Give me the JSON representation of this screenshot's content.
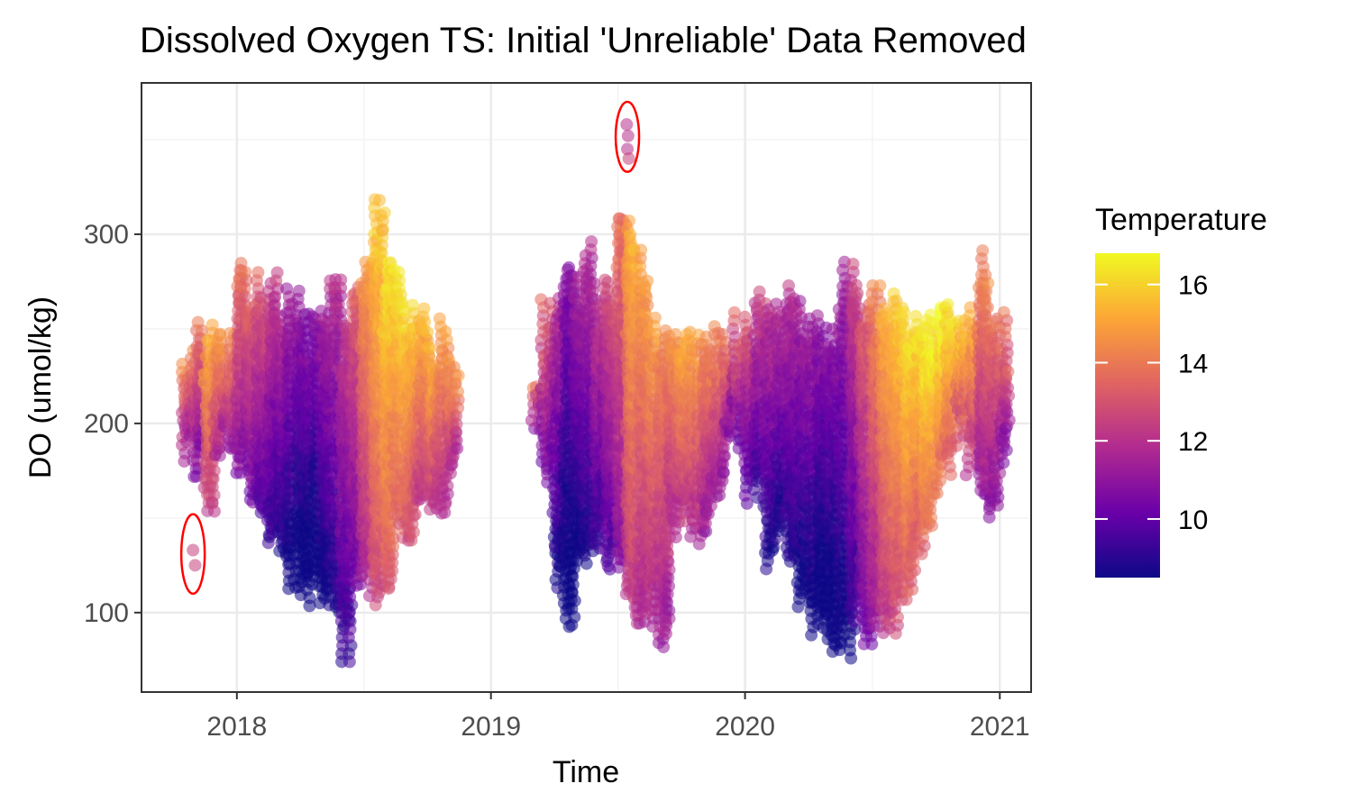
{
  "chart_data": {
    "type": "scatter",
    "title": "Dissolved Oxygen TS: Initial 'Unreliable' Data Removed",
    "xlabel": "Time",
    "ylabel": "DO (umol/kg)",
    "x_ticks": [
      "2018",
      "2019",
      "2020",
      "2021"
    ],
    "y_ticks": [
      100,
      200,
      300
    ],
    "xlim": [
      "2017-08-17",
      "2021-02-15"
    ],
    "ylim": [
      58,
      380
    ],
    "grid": true,
    "legend": {
      "title": "Temperature",
      "position": "right",
      "ticks": [
        10,
        12,
        14,
        16
      ],
      "range": [
        8.5,
        16.8
      ],
      "palette": "plasma"
    },
    "palette_colors": [
      "#0d0887",
      "#6a00a8",
      "#b12a90",
      "#e16462",
      "#fca636",
      "#f0f921"
    ],
    "ellipse_color": "#ff0000",
    "annotations": [
      {
        "type": "ellipse",
        "x": "2017-10-30",
        "y_range": [
          110,
          152
        ]
      },
      {
        "type": "ellipse",
        "x": "2019-07-16",
        "y_range": [
          333,
          370
        ]
      }
    ],
    "x_dates": [
      "2017-10-15",
      "2017-11-01",
      "2017-11-15",
      "2017-12-01",
      "2017-12-15",
      "2018-01-01",
      "2018-01-15",
      "2018-02-01",
      "2018-02-15",
      "2018-03-01",
      "2018-03-15",
      "2018-04-01",
      "2018-04-15",
      "2018-05-01",
      "2018-05-15",
      "2018-06-01",
      "2018-06-15",
      "2018-07-01",
      "2018-07-15",
      "2018-08-01",
      "2018-08-15",
      "2018-09-01",
      "2018-09-15",
      "2018-10-01",
      "2018-10-15",
      "2018-11-01",
      "2019-03-01",
      "2019-03-15",
      "2019-04-01",
      "2019-04-15",
      "2019-05-01",
      "2019-05-15",
      "2019-06-01",
      "2019-06-15",
      "2019-07-01",
      "2019-07-15",
      "2019-08-01",
      "2019-08-15",
      "2019-09-01",
      "2019-09-15",
      "2019-10-01",
      "2019-10-15",
      "2019-11-01",
      "2019-11-15",
      "2019-12-01",
      "2019-12-15",
      "2020-01-01",
      "2020-01-15",
      "2020-02-01",
      "2020-02-15",
      "2020-03-01",
      "2020-03-15",
      "2020-04-01",
      "2020-04-15",
      "2020-05-01",
      "2020-05-15",
      "2020-06-01",
      "2020-06-15",
      "2020-07-01",
      "2020-07-15",
      "2020-08-01",
      "2020-08-15",
      "2020-09-01",
      "2020-09-15",
      "2020-10-01",
      "2020-10-15",
      "2020-11-01",
      "2020-11-15",
      "2020-12-01",
      "2020-12-15",
      "2021-01-01"
    ],
    "do_min": [
      180,
      175,
      160,
      190,
      185,
      180,
      160,
      150,
      140,
      135,
      120,
      110,
      115,
      105,
      100,
      80,
      120,
      115,
      110,
      120,
      140,
      145,
      150,
      160,
      160,
      170,
      200,
      170,
      120,
      100,
      125,
      130,
      140,
      130,
      120,
      95,
      90,
      100,
      80,
      145,
      150,
      140,
      150,
      160,
      180,
      190,
      160,
      160,
      120,
      150,
      130,
      110,
      95,
      90,
      75,
      80,
      95,
      85,
      100,
      90,
      95,
      110,
      130,
      150,
      170,
      180,
      190,
      180,
      160,
      155,
      180
    ],
    "do_max": [
      250,
      265,
      255,
      260,
      255,
      285,
      285,
      280,
      285,
      270,
      275,
      265,
      260,
      265,
      290,
      260,
      280,
      300,
      320,
      300,
      285,
      265,
      265,
      255,
      260,
      245,
      235,
      270,
      270,
      305,
      285,
      300,
      280,
      285,
      320,
      310,
      300,
      265,
      255,
      270,
      260,
      250,
      250,
      255,
      260,
      260,
      265,
      270,
      265,
      270,
      275,
      270,
      265,
      260,
      265,
      290,
      285,
      280,
      275,
      275,
      270,
      265,
      270,
      265,
      265,
      270,
      270,
      265,
      295,
      270,
      260
    ],
    "temp_center": [
      13,
      12.5,
      14,
      13.5,
      13,
      12.5,
      12,
      11.5,
      11,
      10.5,
      10,
      9.5,
      9.5,
      10,
      10.5,
      11,
      12,
      13.5,
      14.5,
      15,
      15,
      14.5,
      14,
      14,
      13.5,
      13.5,
      12.5,
      12,
      10.5,
      9.5,
      10,
      10.5,
      11,
      11.5,
      12.5,
      14,
      13.5,
      13.5,
      13,
      13.5,
      14,
      13.5,
      13,
      13,
      12.5,
      12,
      11.5,
      11,
      10.5,
      10.5,
      10.5,
      10,
      10,
      9.5,
      9.5,
      10,
      11,
      12,
      13,
      14,
      14.5,
      15,
      15,
      15.5,
      15.5,
      15,
      14.5,
      14,
      13,
      12.5,
      12.5
    ],
    "sparse_points": [
      {
        "x": "2017-10-30",
        "y": 133,
        "temp": 12.5
      },
      {
        "x": "2017-11-02",
        "y": 125,
        "temp": 12.5
      },
      {
        "x": "2019-07-15",
        "y": 358,
        "temp": 12
      },
      {
        "x": "2019-07-16",
        "y": 345,
        "temp": 12
      },
      {
        "x": "2019-07-17",
        "y": 352,
        "temp": 12
      },
      {
        "x": "2019-07-18",
        "y": 340,
        "temp": 12.5
      },
      {
        "x": "2018-07-25",
        "y": 318,
        "temp": 15.5
      },
      {
        "x": "2018-07-27",
        "y": 310,
        "temp": 15.5
      },
      {
        "x": "2018-07-29",
        "y": 302,
        "temp": 15
      }
    ]
  }
}
